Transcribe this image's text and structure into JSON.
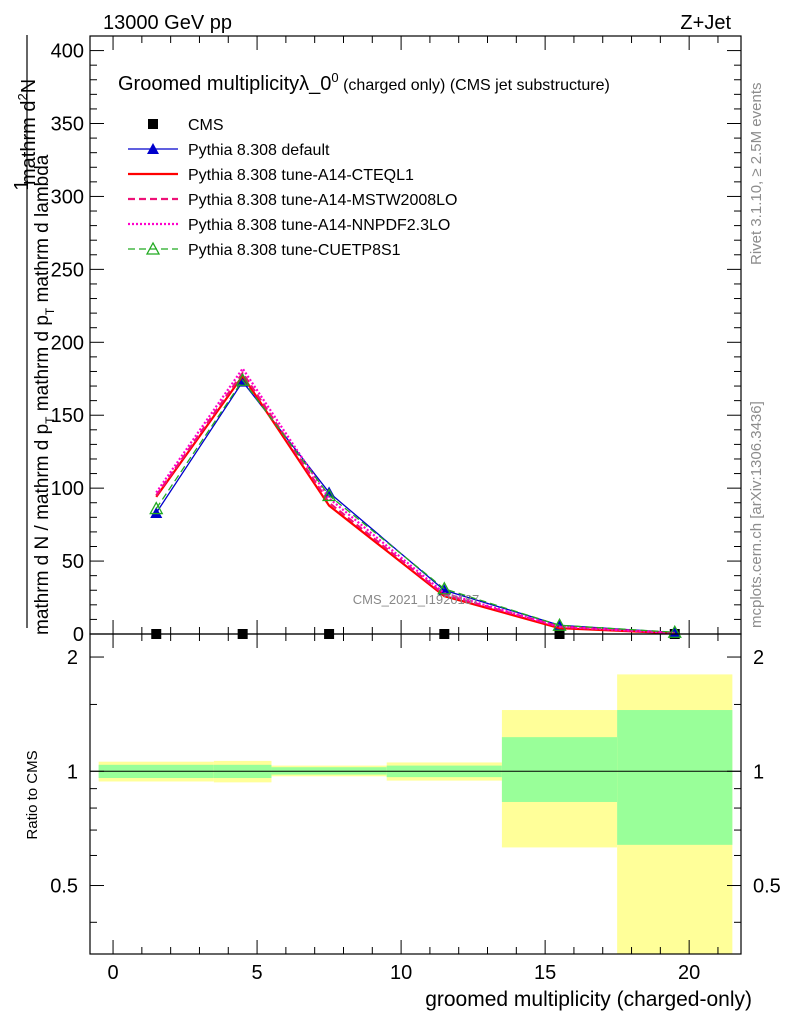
{
  "header": {
    "left": "13000 GeV pp",
    "right": "Z+Jet"
  },
  "side_labels": {
    "rivet": "Rivet 3.1.10, ≥ 2.5M events",
    "mcplots": "mcplots.cern.ch [arXiv:1306.3436]"
  },
  "watermark": "CMS_2021_I1920187",
  "chart_data": [
    {
      "id": "main",
      "type": "line",
      "title_main": "Groomed multiplicityλ_0",
      "title_sup": "0",
      "title_suffix": " (charged only) (CMS jet substructure)",
      "ylabel_top": "1",
      "ylabel_num": "mathrm d",
      "ylabel_num_sup": "2",
      "ylabel_num_tail": "N",
      "ylabel_den": "mathrm d N / mathrm d p",
      "ylabel_den_sub": "T",
      "ylabel_den_tail": " mathrm d p",
      "ylabel_den_sub2": "T",
      "ylabel_den_tail2": " mathrm d lambda",
      "ylabel": "1 / (mathrm d N / mathrm d pT) · mathrm d²N / (mathrm d pT mathrm d lambda)",
      "xlim": [
        -0.8,
        21.8
      ],
      "ylim": [
        0,
        410
      ],
      "yticks": [
        0,
        50,
        100,
        150,
        200,
        250,
        300,
        350,
        400
      ],
      "x": [
        1.5,
        4.5,
        7.5,
        11.5,
        15.5,
        19.5
      ],
      "series": [
        {
          "name": "CMS",
          "style": "marker",
          "marker": "square",
          "color": "#000000",
          "values": [
            0,
            0,
            0,
            0,
            0,
            0
          ]
        },
        {
          "name": "Pythia 8.308 default",
          "style": "solid",
          "marker": "triangle",
          "color": "#0000cc",
          "width": 1.3,
          "values": [
            83,
            173,
            97,
            30,
            6,
            1
          ]
        },
        {
          "name": "Pythia 8.308 tune-A14-CTEQL1",
          "style": "solid",
          "marker": "none",
          "color": "#ff0000",
          "width": 2.2,
          "values": [
            94,
            177,
            88,
            26,
            4,
            0.5
          ]
        },
        {
          "name": "Pythia 8.308 tune-A14-MSTW2008LO",
          "style": "dashed",
          "marker": "none",
          "color": "#ee1177",
          "width": 2.2,
          "values": [
            95,
            179,
            90,
            27,
            5,
            0.6
          ]
        },
        {
          "name": "Pythia 8.308 tune-A14-NNPDF2.3LO",
          "style": "dotted",
          "marker": "none",
          "color": "#ff00cc",
          "width": 2.2,
          "values": [
            97,
            182,
            93,
            28,
            5,
            0.7
          ]
        },
        {
          "name": "Pythia 8.308 tune-CUETP8S1",
          "style": "dashed",
          "marker": "open-triangle",
          "color": "#22aa22",
          "width": 1.3,
          "values": [
            86,
            174,
            95,
            31,
            6,
            1.2
          ]
        }
      ]
    },
    {
      "id": "ratio",
      "type": "area",
      "ylabel": "Ratio to CMS",
      "xlabel": "groomed multiplicity (charged-only)",
      "xlim": [
        -0.8,
        21.8
      ],
      "ylim": [
        0.33,
        2.3
      ],
      "yticks": [
        0.5,
        1,
        2
      ],
      "xticks": [
        0,
        5,
        10,
        15,
        20
      ],
      "reference": 1,
      "bins": [
        {
          "xlow": -0.5,
          "xhigh": 3.5,
          "inner": [
            0.96,
            1.04
          ],
          "outer": [
            0.94,
            1.06
          ]
        },
        {
          "xlow": 3.5,
          "xhigh": 5.5,
          "inner": [
            0.96,
            1.04
          ],
          "outer": [
            0.935,
            1.065
          ]
        },
        {
          "xlow": 5.5,
          "xhigh": 9.5,
          "inner": [
            0.98,
            1.025
          ],
          "outer": [
            0.97,
            1.035
          ]
        },
        {
          "xlow": 9.5,
          "xhigh": 13.5,
          "inner": [
            0.965,
            1.035
          ],
          "outer": [
            0.945,
            1.055
          ]
        },
        {
          "xlow": 13.5,
          "xhigh": 17.5,
          "inner": [
            0.83,
            1.23
          ],
          "outer": [
            0.63,
            1.45
          ]
        },
        {
          "xlow": 17.5,
          "xhigh": 21.5,
          "inner": [
            0.64,
            1.45
          ],
          "outer": [
            0.33,
            1.8
          ]
        }
      ],
      "colors": {
        "inner": "#99ff99",
        "outer": "#ffff99"
      }
    }
  ]
}
